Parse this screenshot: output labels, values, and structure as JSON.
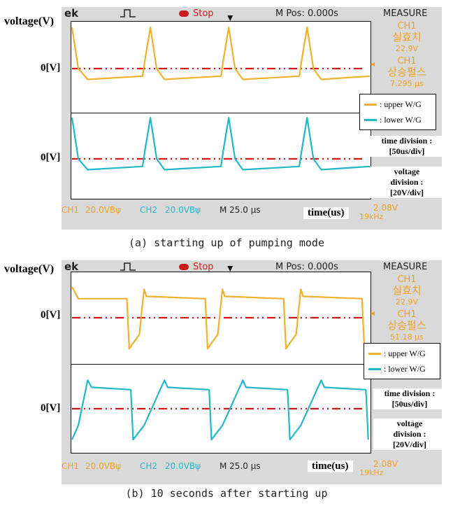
{
  "panels": [
    {
      "y_axis_label": "voltage(V)",
      "zero_label_ch1": "0[V]",
      "zero_label_ch2": "0[V]",
      "x_axis_label": "time(us)",
      "scope": {
        "brand_fragment": "ek",
        "stop_label": "Stop",
        "mpos": "M Pos: 0.000s",
        "measure_title": "MEASURE",
        "measure_items": [
          {
            "channel": "CH1",
            "name": "실효치",
            "value": "22.9V"
          },
          {
            "channel": "CH1",
            "name": "상승펄스",
            "value": "7.295 μs"
          }
        ],
        "ch1_label": "CH1",
        "ch1_scale": "20.0VBψ",
        "ch2_label": "CH2",
        "ch2_scale": "20.0VBψ",
        "time_scale": "M 25.0 μs",
        "trigger_voltage": "2.08V",
        "frequency": "19kHz"
      },
      "legend": [
        {
          "marker": ":",
          "label": "upper W/G",
          "color": "#f0b030"
        },
        {
          "marker": ":",
          "label": "lower W/G",
          "color": "#22b8c8"
        }
      ],
      "time_division_label": "time division :",
      "time_division_value": "[50us/div]",
      "voltage_division_label1": "voltage",
      "voltage_division_label2": "division :",
      "voltage_division_value": "[20V/div]",
      "caption": "(a) starting up of pumping mode"
    },
    {
      "y_axis_label": "voltage(V)",
      "zero_label_ch1": "0[V]",
      "zero_label_ch2": "0[V]",
      "x_axis_label": "time(us)",
      "scope": {
        "brand_fragment": "ek",
        "stop_label": "Stop",
        "mpos": "M Pos: 0.000s",
        "measure_title": "MEASURE",
        "measure_items": [
          {
            "channel": "CH1",
            "name": "실효치",
            "value": "22.9V"
          },
          {
            "channel": "CH1",
            "name": "상승펄스",
            "value": "51.18 μs"
          }
        ],
        "ch1_label": "CH1",
        "ch1_scale": "20.0VBψ",
        "ch2_label": "CH2",
        "ch2_scale": "20.0VBψ",
        "time_scale": "M 25.0 μs",
        "trigger_voltage": "2.08V",
        "frequency": "19kHz"
      },
      "legend": [
        {
          "marker": ":",
          "label": "upper W/G",
          "color": "#f0b030"
        },
        {
          "marker": ":",
          "label": "lower W/G",
          "color": "#22b8c8"
        }
      ],
      "time_division_label": "time division :",
      "time_division_value": "[50us/div]",
      "voltage_division_label1": "voltage",
      "voltage_division_label2": "division :",
      "voltage_division_value": "[20V/div]",
      "caption": "(b) 10 seconds after starting up"
    }
  ],
  "colors": {
    "upper": "#f0b030",
    "lower": "#22b8c8",
    "zero_line": "#d81818",
    "measure_text": "#f0a020"
  },
  "chart_data": [
    {
      "type": "line",
      "panel": "a",
      "x_unit": "us",
      "y_unit": "V",
      "x_per_div_us": 50,
      "y_per_div_V": 20,
      "series": [
        {
          "name": "upper W/G",
          "x": [
            0,
            8,
            20,
            90,
            94,
            100,
            108,
            118,
            190,
            194,
            200,
            208,
            218,
            290,
            294,
            300,
            308,
            318,
            380
          ],
          "y": [
            38,
            0,
            -10,
            -7,
            12,
            38,
            0,
            -10,
            -7,
            12,
            38,
            0,
            -10,
            -7,
            12,
            38,
            0,
            -10,
            -7
          ]
        },
        {
          "name": "lower W/G",
          "x": [
            0,
            8,
            20,
            90,
            94,
            100,
            108,
            118,
            190,
            194,
            200,
            208,
            218,
            290,
            294,
            300,
            308,
            318,
            380
          ],
          "y": [
            38,
            0,
            -10,
            -7,
            12,
            38,
            0,
            -10,
            -7,
            12,
            38,
            0,
            -10,
            -7,
            12,
            38,
            0,
            -10,
            -7
          ]
        }
      ]
    },
    {
      "type": "line",
      "panel": "b",
      "x_unit": "us",
      "y_unit": "V",
      "x_per_div_us": 50,
      "y_per_div_V": 20,
      "series": [
        {
          "name": "upper W/G",
          "x": [
            0,
            8,
            70,
            73,
            86,
            92,
            95,
            170,
            173,
            186,
            192,
            195,
            270,
            273,
            286,
            292,
            295,
            370,
            373
          ],
          "y": [
            26,
            16,
            16,
            -26,
            -14,
            24,
            18,
            16,
            -26,
            -14,
            24,
            18,
            16,
            -26,
            -14,
            24,
            18,
            16,
            -26
          ]
        },
        {
          "name": "lower W/G",
          "x": [
            0,
            8,
            20,
            25,
            75,
            78,
            92,
            118,
            122,
            175,
            178,
            192,
            218,
            222,
            275,
            278,
            292,
            318,
            322,
            375,
            378
          ],
          "y": [
            -26,
            -14,
            24,
            18,
            16,
            -26,
            -14,
            24,
            18,
            16,
            -26,
            -14,
            24,
            18,
            16,
            -26,
            -14,
            24,
            18,
            16,
            -26
          ]
        }
      ]
    }
  ]
}
